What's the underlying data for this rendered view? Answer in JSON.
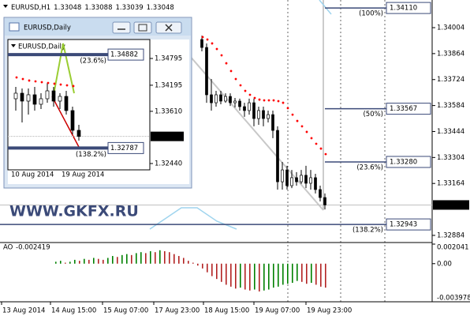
{
  "watermark": "WWW.GKFX.RU",
  "chart_data": [
    {
      "type": "candlestick",
      "symbol": "EURUSD,H1",
      "ohlc": [
        1.33048,
        1.33088,
        1.33039,
        1.33048
      ],
      "open": [
        1.3394,
        1.33897,
        1.33642,
        1.33599,
        1.33642,
        1.33608,
        1.33633,
        1.33599,
        1.33608,
        1.33578,
        1.33557,
        1.33599,
        1.33514,
        1.33557,
        1.33514,
        1.33535,
        1.3345,
        1.33173,
        1.33237,
        1.33152,
        1.33195,
        1.33173,
        1.33208,
        1.33165,
        1.33195,
        1.33131,
        1.33088
      ],
      "high": [
        1.33961,
        1.33919,
        1.33727,
        1.33663,
        1.33663,
        1.3365,
        1.3365,
        1.33625,
        1.33621,
        1.33599,
        1.33621,
        1.33621,
        1.33578,
        1.33578,
        1.33557,
        1.33557,
        1.33472,
        1.3328,
        1.33259,
        1.33237,
        1.33225,
        1.33237,
        1.33259,
        1.33237,
        1.33216,
        1.33152,
        1.3311
      ],
      "low": [
        1.33876,
        1.33599,
        1.33557,
        1.33578,
        1.33591,
        1.33599,
        1.33582,
        1.33574,
        1.33557,
        1.33523,
        1.33535,
        1.33472,
        1.3348,
        1.33472,
        1.33493,
        1.33408,
        1.33131,
        1.33131,
        1.33131,
        1.33139,
        1.33152,
        1.33161,
        1.33139,
        1.33131,
        1.3311,
        1.33067,
        1.33024
      ],
      "close": [
        1.33897,
        1.33642,
        1.33599,
        1.33642,
        1.33608,
        1.33633,
        1.33599,
        1.33608,
        1.33578,
        1.33557,
        1.33599,
        1.33514,
        1.33557,
        1.33514,
        1.33535,
        1.3345,
        1.33173,
        1.33237,
        1.33152,
        1.33195,
        1.33173,
        1.33208,
        1.33165,
        1.33195,
        1.33131,
        1.33088,
        1.33048
      ],
      "sar": [
        1.33953,
        1.3394,
        1.33919,
        1.33889,
        1.33855,
        1.33812,
        1.3377,
        1.33727,
        1.33693,
        1.33663,
        1.33642,
        1.33625,
        1.33616,
        1.33612,
        1.33612,
        1.33612,
        1.33608,
        1.33599,
        1.3357,
        1.33535,
        1.33501,
        1.33472,
        1.33442,
        1.33408,
        1.33378,
        1.33352,
        1.33322
      ],
      "sar_color": "#ff0000",
      "ylim": [
        1.32854,
        1.34153
      ],
      "yticks": [
        1.34004,
        1.33864,
        1.33724,
        1.33584,
        1.33444,
        1.33304,
        1.33164,
        1.32884
      ],
      "last": 1.33048,
      "fib_levels": {
        "values": [
          1.3411,
          1.33567,
          1.3328,
          1.32943
        ],
        "value_labels": [
          "1.34110",
          "1.33567",
          "1.33280",
          "1.32943"
        ],
        "labels": [
          "(100%)",
          "(50%)",
          "(23.6%)",
          "(138.2%)"
        ]
      },
      "x_labels": [
        "13 Aug 2014",
        "14 Aug 15:00",
        "15 Aug 07:00",
        "17 Aug 23:00",
        "18 Aug 15:00",
        "19 Aug 07:00",
        "19 Aug 23:00"
      ]
    },
    {
      "type": "bar",
      "name": "AO",
      "current": -0.002419,
      "values": [
        0.0002,
        0.0003,
        0.0001,
        0.0002,
        0.0004,
        0.0003,
        0.0005,
        0.0004,
        0.0006,
        0.0005,
        0.0004,
        0.0006,
        0.0008,
        0.0007,
        0.0009,
        0.001,
        0.0009,
        0.0011,
        0.0012,
        0.0011,
        0.0013,
        0.0012,
        0.0014,
        0.0013,
        0.0012,
        0.001,
        0.0008,
        0.0006,
        0.0003,
        0.0001,
        -0.0002,
        -0.0005,
        -0.0009,
        -0.0013,
        -0.0016,
        -0.0019,
        -0.0022,
        -0.0024,
        -0.0026,
        -0.0025,
        -0.0027,
        -0.0028,
        -0.0027,
        -0.0029,
        -0.0028,
        -0.0027,
        -0.0025,
        -0.0024,
        -0.0022,
        -0.0021,
        -0.002,
        -0.0018,
        -0.0019,
        -0.0021,
        -0.002,
        -0.0022,
        -0.0024,
        -0.0025
      ],
      "up_color": "#008000",
      "down_color": "#b22222",
      "ylim": [
        -0.003978,
        0.002041
      ],
      "yticks": [
        0.002041,
        {
          "value": 0,
          "label": "0.00"
        },
        -0.003978
      ]
    },
    {
      "type": "candlestick",
      "window_title": "EURUSD,Daily",
      "symbol": "EURUSD,Daily",
      "open": [
        1.33892,
        1.34016,
        1.33839,
        1.33981,
        1.33768,
        1.33892,
        1.34069,
        1.33839,
        1.33945,
        1.33627,
        1.33184
      ],
      "high": [
        1.34158,
        1.34122,
        1.34122,
        1.34158,
        1.34016,
        1.34246,
        1.34158,
        1.34016,
        1.34069,
        1.33715,
        1.33308
      ],
      "low": [
        1.33627,
        1.33361,
        1.33538,
        1.33627,
        1.33662,
        1.33804,
        1.33715,
        1.33662,
        1.33538,
        1.33095,
        1.32954
      ],
      "close": [
        1.34016,
        1.33839,
        1.33981,
        1.33768,
        1.33892,
        1.34069,
        1.33839,
        1.33945,
        1.33627,
        1.33184,
        1.33048
      ],
      "sar": [
        1.3437,
        1.34335,
        1.343,
        1.34282,
        1.34264,
        1.34246,
        1.34229,
        1.34211,
        1.34193,
        1.34176,
        null
      ],
      "sar_color": "#ff0000",
      "ylim": [
        1.32298,
        1.3522
      ],
      "yticks": [
        1.34795,
        1.34195,
        {
          "value": 1.3361,
          "label": "1.33610"
        },
        {
          "value": 1.3244,
          "label": "1.32440"
        }
      ],
      "last": 1.33048,
      "fib_levels": {
        "values": [
          1.34882,
          1.32787
        ],
        "labels": [
          "(23.6%)",
          "(138.2%)"
        ]
      },
      "x_labels": [
        "10 Aug 2014",
        "19 Aug 2014"
      ]
    }
  ]
}
